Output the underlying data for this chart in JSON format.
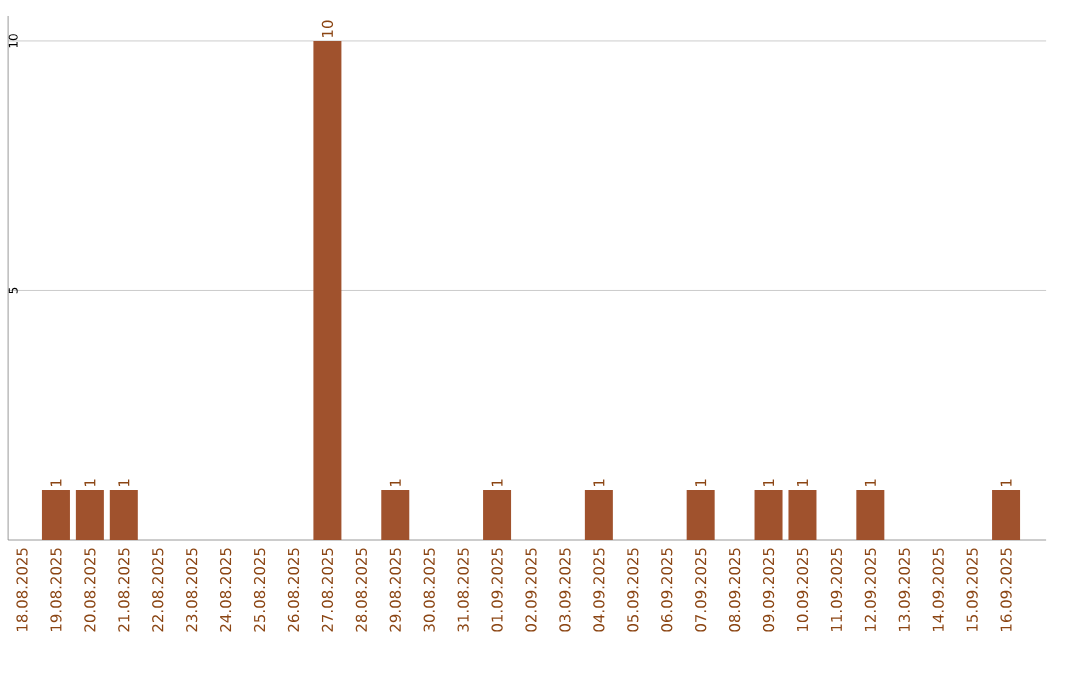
{
  "chart_data": {
    "type": "bar",
    "categories": [
      "18.08.2025",
      "19.08.2025",
      "20.08.2025",
      "21.08.2025",
      "22.08.2025",
      "23.08.2025",
      "24.08.2025",
      "25.08.2025",
      "26.08.2025",
      "27.08.2025",
      "28.08.2025",
      "29.08.2025",
      "30.08.2025",
      "31.08.2025",
      "01.09.2025",
      "02.09.2025",
      "03.09.2025",
      "04.09.2025",
      "05.09.2025",
      "06.09.2025",
      "07.09.2025",
      "08.09.2025",
      "09.09.2025",
      "10.09.2025",
      "11.09.2025",
      "12.09.2025",
      "13.09.2025",
      "14.09.2025",
      "15.09.2025",
      "16.09.2025"
    ],
    "values": [
      0,
      1,
      1,
      1,
      0,
      0,
      0,
      0,
      0,
      10,
      0,
      1,
      0,
      0,
      1,
      0,
      0,
      1,
      0,
      0,
      1,
      0,
      1,
      1,
      0,
      1,
      0,
      0,
      0,
      1
    ],
    "value_labels": [
      null,
      "1",
      "1",
      "1",
      null,
      null,
      null,
      null,
      null,
      "10",
      null,
      "1",
      null,
      null,
      "1",
      null,
      null,
      "1",
      null,
      null,
      "1",
      null,
      "1",
      "1",
      null,
      "1",
      null,
      null,
      null,
      "1"
    ],
    "color": "#a0522d",
    "ylim": [
      0,
      10.5
    ],
    "yticks": [
      5,
      10
    ],
    "grid": true
  }
}
